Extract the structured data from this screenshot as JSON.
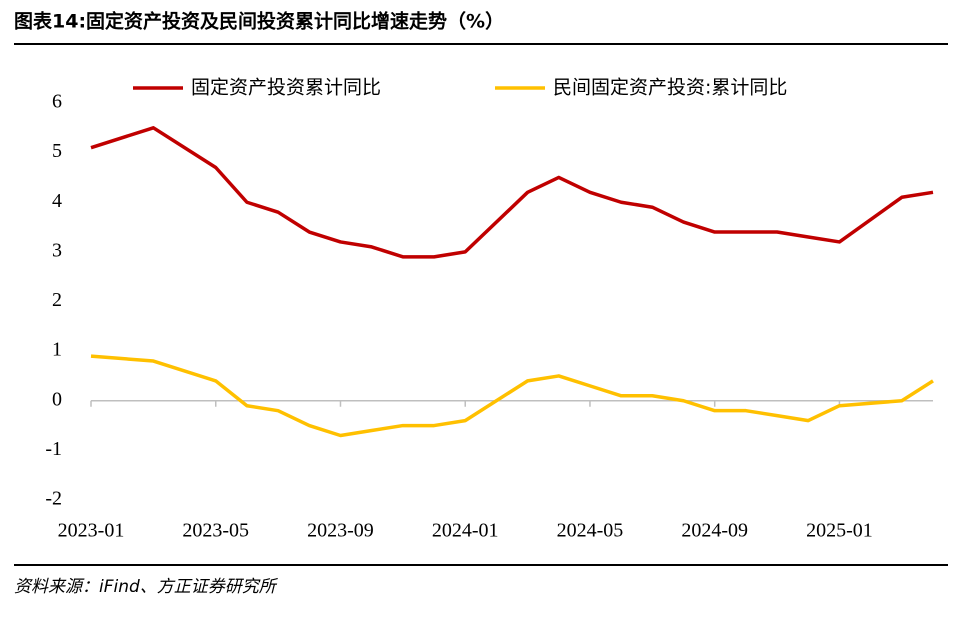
{
  "chart_data": {
    "type": "line",
    "title": "图表14:固定资产投资及民间投资累计同比增速走势（%）",
    "source": "资料来源：iFind、方正证券研究所",
    "x": [
      "2023-01",
      "2023-03",
      "2023-05",
      "2023-06",
      "2023-07",
      "2023-08",
      "2023-09",
      "2023-10",
      "2023-11",
      "2023-12",
      "2024-01",
      "2024-03",
      "2024-04",
      "2024-05",
      "2024-06",
      "2024-07",
      "2024-08",
      "2024-09",
      "2024-10",
      "2024-11",
      "2024-12",
      "2025-01",
      "2025-03",
      "2025-04"
    ],
    "xlim": [
      "2023-01",
      "2025-04"
    ],
    "xticks": [
      "2023-01",
      "2023-05",
      "2023-09",
      "2024-01",
      "2024-05",
      "2024-09",
      "2025-01"
    ],
    "ylim": [
      -2,
      6
    ],
    "yticks": [
      -2,
      -1,
      0,
      1,
      2,
      3,
      4,
      5,
      6
    ],
    "legend": "top",
    "series": [
      {
        "name": "固定资产投资累计同比",
        "color": "#c00000",
        "values": [
          5.1,
          5.5,
          4.7,
          4.0,
          3.8,
          3.4,
          3.2,
          3.1,
          2.9,
          2.9,
          3.0,
          4.2,
          4.5,
          4.2,
          4.0,
          3.9,
          3.6,
          3.4,
          3.4,
          3.4,
          3.3,
          3.2,
          4.1,
          4.2
        ]
      },
      {
        "name": "民间固定资产投资:累计同比",
        "color": "#ffc000",
        "values": [
          0.9,
          0.8,
          0.4,
          -0.1,
          -0.2,
          -0.5,
          -0.7,
          -0.6,
          -0.5,
          -0.5,
          -0.4,
          0.4,
          0.5,
          0.3,
          0.1,
          0.1,
          0.0,
          -0.2,
          -0.2,
          -0.3,
          -0.4,
          -0.1,
          0.0,
          0.4
        ]
      }
    ]
  }
}
